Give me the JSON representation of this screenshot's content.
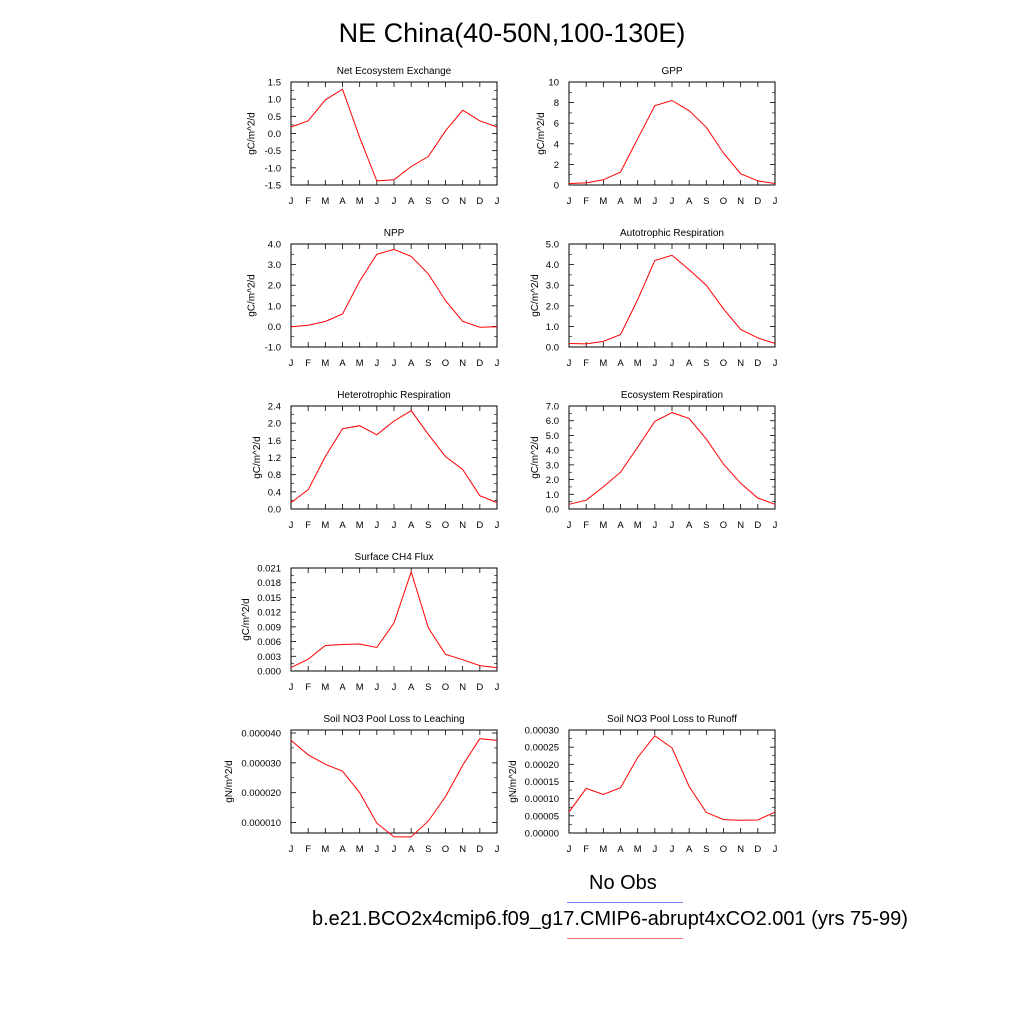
{
  "title": "NE China(40-50N,100-130E)",
  "legend": {
    "obs_label": "No Obs",
    "case_label": "b.e21.BCO2x4cmip6.f09_g17.CMIP6-abrupt4xCO2.001 (yrs 75-99)",
    "obs_color": "#8080ff",
    "case_color": "#ff0000"
  },
  "chart_data": [
    {
      "type": "line",
      "title": "Net Ecosystem Exchange",
      "ylabel": "gC/m^2/d",
      "categories": [
        "J",
        "F",
        "M",
        "A",
        "M",
        "J",
        "J",
        "A",
        "S",
        "O",
        "N",
        "D",
        "J"
      ],
      "ylim": [
        -1.5,
        1.5
      ],
      "yticks": [
        "-1.5",
        "-1.0",
        "-0.5",
        "0.0",
        "0.5",
        "1.0",
        "1.5"
      ],
      "series": [
        {
          "values": [
            0.19,
            0.37,
            0.98,
            1.29,
            -0.12,
            -1.38,
            -1.35,
            -0.96,
            -0.67,
            0.08,
            0.68,
            0.37,
            0.19
          ],
          "color": "#ff0000"
        }
      ]
    },
    {
      "type": "line",
      "title": "GPP",
      "ylabel": "gC/m^2/d",
      "categories": [
        "J",
        "F",
        "M",
        "A",
        "M",
        "J",
        "J",
        "A",
        "S",
        "O",
        "N",
        "D",
        "J"
      ],
      "ylim": [
        0,
        10
      ],
      "yticks": [
        "0",
        "2",
        "4",
        "6",
        "8",
        "10"
      ],
      "series": [
        {
          "values": [
            0.15,
            0.2,
            0.5,
            1.25,
            4.5,
            7.7,
            8.2,
            7.2,
            5.6,
            3.1,
            1.1,
            0.4,
            0.15
          ],
          "color": "#ff0000"
        }
      ]
    },
    {
      "type": "line",
      "title": "NPP",
      "ylabel": "gC/m^2/d",
      "categories": [
        "J",
        "F",
        "M",
        "A",
        "M",
        "J",
        "J",
        "A",
        "S",
        "O",
        "N",
        "D",
        "J"
      ],
      "ylim": [
        -1.0,
        4.0
      ],
      "yticks": [
        "-1.0",
        "0.0",
        "1.0",
        "2.0",
        "3.0",
        "4.0"
      ],
      "series": [
        {
          "values": [
            -0.02,
            0.06,
            0.24,
            0.6,
            2.2,
            3.5,
            3.74,
            3.4,
            2.55,
            1.25,
            0.25,
            -0.04,
            -0.02
          ],
          "color": "#ff0000"
        }
      ]
    },
    {
      "type": "line",
      "title": "Autotrophic Respiration",
      "ylabel": "gC/m^2/d",
      "categories": [
        "J",
        "F",
        "M",
        "A",
        "M",
        "J",
        "J",
        "A",
        "S",
        "O",
        "N",
        "D",
        "J"
      ],
      "ylim": [
        0.0,
        5.0
      ],
      "yticks": [
        "0.0",
        "1.0",
        "2.0",
        "3.0",
        "4.0",
        "5.0"
      ],
      "series": [
        {
          "values": [
            0.17,
            0.15,
            0.27,
            0.6,
            2.3,
            4.2,
            4.45,
            3.75,
            3.0,
            1.85,
            0.85,
            0.44,
            0.17
          ],
          "color": "#ff0000"
        }
      ]
    },
    {
      "type": "line",
      "title": "Heterotrophic Respiration",
      "ylabel": "gC/m^2/d",
      "categories": [
        "J",
        "F",
        "M",
        "A",
        "M",
        "J",
        "J",
        "A",
        "S",
        "O",
        "N",
        "D",
        "J"
      ],
      "ylim": [
        0.0,
        2.4
      ],
      "yticks": [
        "0.0",
        "0.4",
        "0.8",
        "1.2",
        "1.6",
        "2.0",
        "2.4"
      ],
      "series": [
        {
          "values": [
            0.15,
            0.45,
            1.22,
            1.87,
            1.94,
            1.73,
            2.05,
            2.29,
            1.74,
            1.22,
            0.92,
            0.31,
            0.15
          ],
          "color": "#ff0000"
        }
      ]
    },
    {
      "type": "line",
      "title": "Ecosystem Respiration",
      "ylabel": "gC/m^2/d",
      "categories": [
        "J",
        "F",
        "M",
        "A",
        "M",
        "J",
        "J",
        "A",
        "S",
        "O",
        "N",
        "D",
        "J"
      ],
      "ylim": [
        0.0,
        7.0
      ],
      "yticks": [
        "0.0",
        "1.0",
        "2.0",
        "3.0",
        "4.0",
        "5.0",
        "6.0",
        "7.0"
      ],
      "series": [
        {
          "values": [
            0.32,
            0.6,
            1.5,
            2.5,
            4.2,
            5.95,
            6.55,
            6.15,
            4.75,
            3.05,
            1.75,
            0.75,
            0.32
          ],
          "color": "#ff0000"
        }
      ]
    },
    {
      "type": "line",
      "title": "Surface CH4 Flux",
      "ylabel": "gC/m^2/d",
      "categories": [
        "J",
        "F",
        "M",
        "A",
        "M",
        "J",
        "J",
        "A",
        "S",
        "O",
        "N",
        "D",
        "J"
      ],
      "ylim": [
        0.0,
        0.021
      ],
      "yticks": [
        "0.000",
        "0.003",
        "0.006",
        "0.009",
        "0.012",
        "0.015",
        "0.018",
        "0.021"
      ],
      "series": [
        {
          "values": [
            0.0007,
            0.0024,
            0.0052,
            0.0054,
            0.0055,
            0.0048,
            0.0098,
            0.0202,
            0.0088,
            0.0034,
            0.0023,
            0.0011,
            0.0007
          ],
          "color": "#ff0000"
        }
      ]
    },
    {
      "type": "line",
      "title": "Soil NO3 Pool Loss to Leaching",
      "ylabel": "gN/m^2/d",
      "categories": [
        "J",
        "F",
        "M",
        "A",
        "M",
        "J",
        "J",
        "A",
        "S",
        "O",
        "N",
        "D",
        "J"
      ],
      "ylim": [
        6.5e-06,
        4.1e-05
      ],
      "yticks": [
        "0.000010",
        "0.000020",
        "0.000030",
        "0.000040"
      ],
      "ytickvalues": [
        1e-05,
        2e-05,
        3e-05,
        4e-05
      ],
      "series": [
        {
          "values": [
            3.75e-05,
            3.27e-05,
            2.95e-05,
            2.72e-05,
            2e-05,
            9.8e-06,
            5.2e-06,
            5.2e-06,
            1.05e-05,
            1.87e-05,
            2.92e-05,
            3.81e-05,
            3.75e-05
          ],
          "color": "#ff0000"
        }
      ]
    },
    {
      "type": "line",
      "title": "Soil NO3 Pool Loss to Runoff",
      "ylabel": "gN/m^2/d",
      "categories": [
        "J",
        "F",
        "M",
        "A",
        "M",
        "J",
        "J",
        "A",
        "S",
        "O",
        "N",
        "D",
        "J"
      ],
      "ylim": [
        0.0,
        0.0003
      ],
      "yticks": [
        "0.00000",
        "0.00005",
        "0.00010",
        "0.00015",
        "0.00020",
        "0.00025",
        "0.00030"
      ],
      "series": [
        {
          "values": [
            6.1e-05,
            0.00013,
            0.000112,
            0.000132,
            0.00022,
            0.000283,
            0.000248,
            0.000135,
            6e-05,
            3.9e-05,
            3.7e-05,
            3.8e-05,
            6.1e-05
          ],
          "color": "#ff0000"
        }
      ]
    }
  ]
}
